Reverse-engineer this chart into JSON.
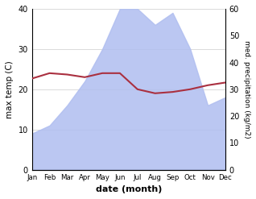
{
  "months": [
    "Jan",
    "Feb",
    "Mar",
    "Apr",
    "May",
    "Jun",
    "Jul",
    "Aug",
    "Sep",
    "Oct",
    "Nov",
    "Dec"
  ],
  "month_x": [
    0,
    1,
    2,
    3,
    4,
    5,
    6,
    7,
    8,
    9,
    10,
    11
  ],
  "precipitation": [
    9,
    11,
    16,
    22,
    30,
    40,
    40,
    36,
    39,
    30,
    16,
    18
  ],
  "temperature": [
    34,
    36,
    35.5,
    34.5,
    36,
    36,
    30,
    28.5,
    29,
    30,
    31.5,
    32.5
  ],
  "precip_color": "#b0bef0",
  "temp_color": "#aa3040",
  "left_ylabel": "max temp (C)",
  "right_ylabel": "med. precipitation (kg/m2)",
  "xlabel": "date (month)",
  "left_ylim": [
    0,
    40
  ],
  "right_ylim": [
    0,
    60
  ],
  "left_yticks": [
    0,
    10,
    20,
    30,
    40
  ],
  "right_yticks": [
    0,
    10,
    20,
    30,
    40,
    50,
    60
  ],
  "bg_color": "#ffffff",
  "grid_color": "#cccccc"
}
